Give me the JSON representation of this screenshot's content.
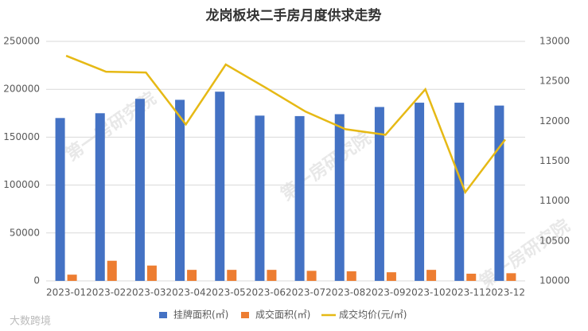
{
  "chart_data": {
    "type": "bar",
    "title": "龙岗板块二手房月度供求走势",
    "categories": [
      "2023-01",
      "2023-02",
      "2023-03",
      "2023-04",
      "2023-05",
      "2023-06",
      "2023-07",
      "2023-08",
      "2023-09",
      "2023-10",
      "2023-11",
      "2023-12"
    ],
    "series": [
      {
        "name": "挂牌面积(㎡)",
        "color": "#4472c4",
        "type": "bar",
        "values": [
          170000,
          175000,
          190000,
          189000,
          197500,
          172500,
          172000,
          174000,
          181500,
          186000,
          186000,
          183000
        ]
      },
      {
        "name": "成交面积(㎡)",
        "color": "#ed7d31",
        "type": "bar",
        "values": [
          6500,
          21000,
          16000,
          11500,
          11500,
          11500,
          10500,
          10000,
          9000,
          11500,
          7500,
          8000
        ]
      },
      {
        "name": "成交均价(元/㎡)",
        "color": "#e6b915",
        "type": "line",
        "axis": "y2",
        "values": [
          12820,
          12620,
          12610,
          11960,
          12710,
          12420,
          12120,
          11900,
          11830,
          12400,
          11110,
          11770
        ]
      }
    ],
    "ylim": [
      0,
      250000
    ],
    "yticks": [
      0,
      50000,
      100000,
      150000,
      200000,
      250000
    ],
    "y2lim": [
      10000,
      13000
    ],
    "y2ticks": [
      10000,
      10500,
      11000,
      11500,
      12000,
      12500,
      13000
    ],
    "grid": true,
    "legend": "bottom",
    "watermark": "第一房研究院",
    "logo": "大数跨境"
  }
}
